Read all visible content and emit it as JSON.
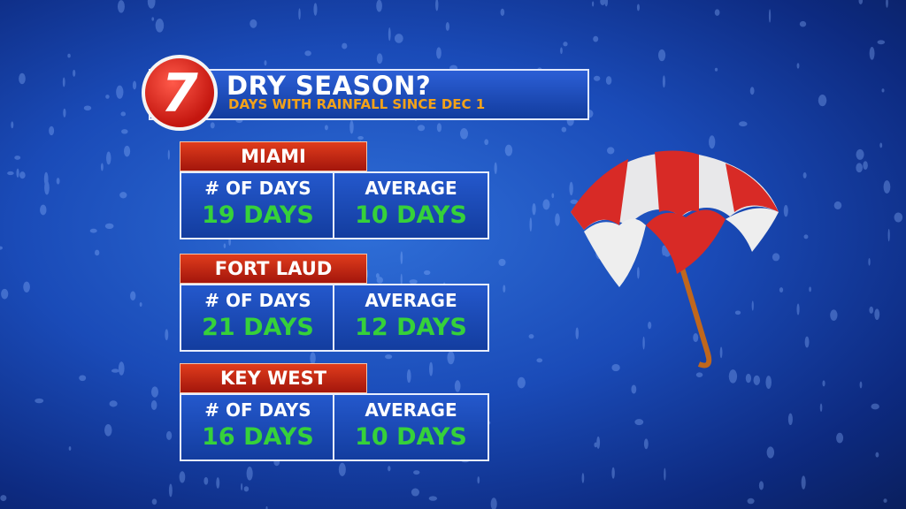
{
  "header": {
    "logo": "7",
    "title": "DRY SEASON?",
    "subtitle": "DAYS WITH RAINFALL SINCE DEC 1"
  },
  "cities": [
    {
      "name": "MIAMI",
      "days_label": "# OF DAYS",
      "days": "19 DAYS",
      "average_label": "AVERAGE",
      "average": "10 DAYS"
    },
    {
      "name": "FORT LAUD",
      "days_label": "# OF DAYS",
      "days": "21 DAYS",
      "average_label": "AVERAGE",
      "average": "12 DAYS"
    },
    {
      "name": "KEY WEST",
      "days_label": "# OF DAYS",
      "days": "16 DAYS",
      "average_label": "AVERAGE",
      "average": "10 DAYS"
    }
  ]
}
